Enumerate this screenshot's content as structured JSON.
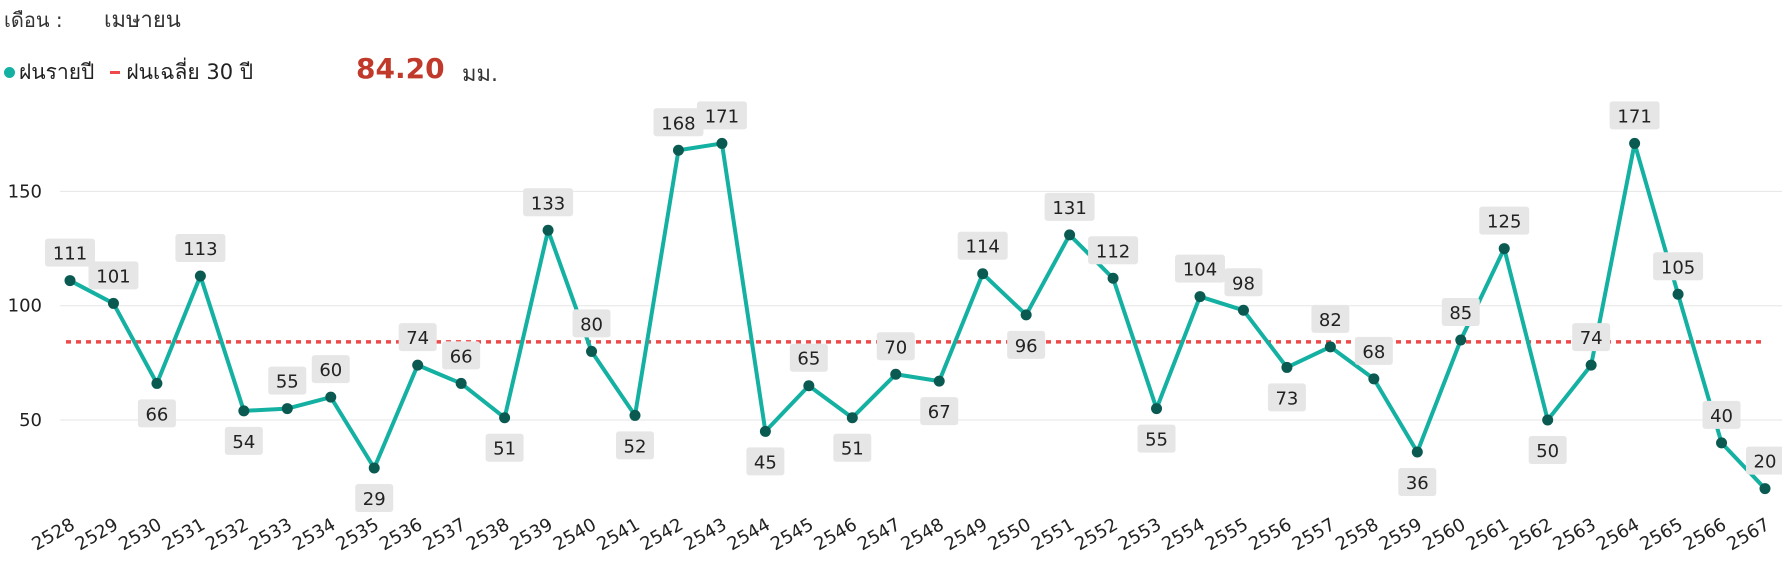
{
  "header": {
    "month_label": "เดือน :",
    "month_value": "เมษายน"
  },
  "legend": {
    "annual_label": "ฝนรายปี",
    "avg_label": "ฝนเฉลี่ย 30 ปี",
    "avg_value": "84.20",
    "unit": "มม."
  },
  "colors": {
    "line": "#14b1a3",
    "marker": "#0b5a52",
    "average": "#ee4a4a",
    "avg_value": "#c0392b",
    "label_bg": "#e6e6e6",
    "grid": "#e6e6e6"
  },
  "chart_data": {
    "type": "line",
    "x": [
      "2528",
      "2529",
      "2530",
      "2531",
      "2532",
      "2533",
      "2534",
      "2535",
      "2536",
      "2537",
      "2538",
      "2539",
      "2540",
      "2541",
      "2542",
      "2543",
      "2544",
      "2545",
      "2546",
      "2547",
      "2548",
      "2549",
      "2550",
      "2551",
      "2552",
      "2553",
      "2554",
      "2555",
      "2556",
      "2557",
      "2558",
      "2559",
      "2560",
      "2561",
      "2562",
      "2563",
      "2564",
      "2565",
      "2566",
      "2567"
    ],
    "series": [
      {
        "name": "ฝนรายปี",
        "values": [
          111,
          101,
          66,
          113,
          54,
          55,
          60,
          29,
          74,
          66,
          51,
          133,
          80,
          52,
          168,
          171,
          45,
          65,
          51,
          70,
          67,
          114,
          96,
          131,
          112,
          55,
          104,
          98,
          73,
          82,
          68,
          36,
          85,
          125,
          50,
          74,
          171,
          105,
          40,
          20
        ]
      },
      {
        "name": "ฝนเฉลี่ย 30 ปี",
        "value": 84.2
      }
    ],
    "yticks": [
      50,
      100,
      150
    ],
    "ylim": [
      15,
      190
    ],
    "grid": true,
    "legend": "top-left"
  }
}
